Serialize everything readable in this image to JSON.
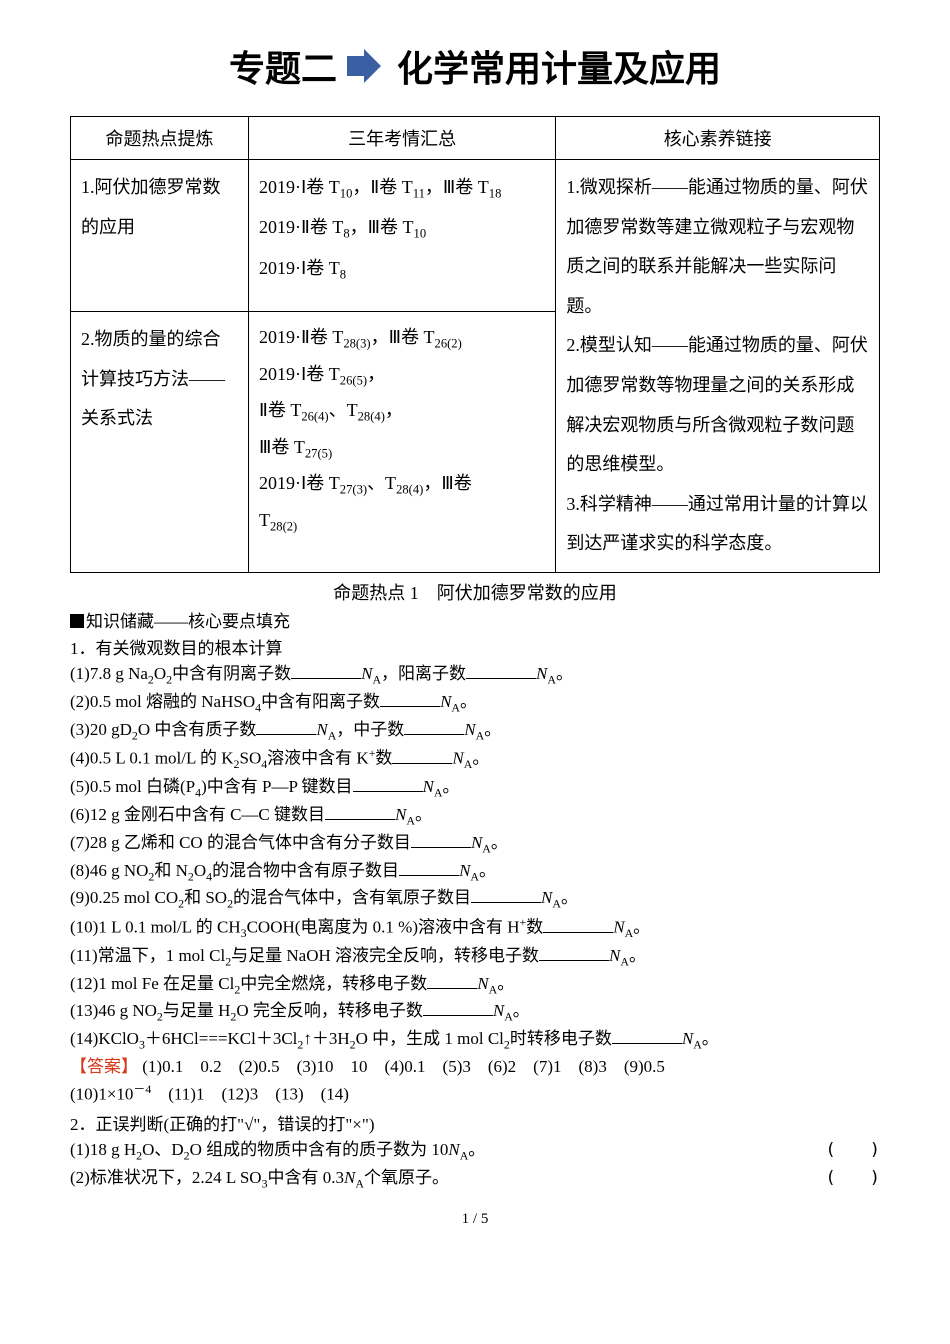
{
  "title": {
    "left": "专题二",
    "right": "化学常用计量及应用"
  },
  "arrow": {
    "fill": "#3a5fa3",
    "bg": "#ffffff"
  },
  "table": {
    "headers": [
      "命题热点提炼",
      "三年考情汇总",
      "核心素养链接"
    ],
    "rows": [
      {
        "c0": "1.阿伏加德罗常数的应用",
        "c1_lines": [
          "2019·Ⅰ卷 T<sub>10</sub>，Ⅱ卷 T<sub>11</sub>，Ⅲ卷 T<sub>18</sub>",
          "2019·Ⅱ卷 T<sub>8</sub>，Ⅲ卷 T<sub>10</sub>",
          "2019·Ⅰ卷 T<sub>8</sub>"
        ]
      },
      {
        "c0": "2.物质的量的综合计算技巧方法——关系式法",
        "c1_lines": [
          "2019·Ⅱ卷 T<sub>28(3)</sub>，Ⅲ卷 T<sub>26(2)</sub>",
          "2019·Ⅰ卷 T<sub>26(5)</sub>，",
          "Ⅱ卷 T<sub>26(4)</sub>、T<sub>28(4)</sub>，",
          "Ⅲ卷 T<sub>27(5)</sub>",
          "2019·Ⅰ卷 T<sub>27(3)</sub>、T<sub>28(4)</sub>，Ⅲ卷",
          "T<sub>28(2)</sub>"
        ]
      }
    ],
    "right_lines": [
      "1.微观探析——能通过物质的量、阿伏加德罗常数等建立微观粒子与宏观物质之间的联系并能解决一些实际问题。",
      "2.模型认知——能通过物质的量、阿伏加德罗常数等物理量之间的关系形成解决宏观物质与所含微观粒子数问题的思维模型。",
      "3.科学精神——通过常用计量的计算以到达严谨求实的科学态度。"
    ]
  },
  "section1": {
    "heading": "命题热点 1　阿伏加德罗常数的应用",
    "sub1": "知识储藏——核心要点填充",
    "sub2": "1．有关微观数目的根本计算"
  },
  "questions": [
    {
      "pre": "(1)7.8 g Na<sub>2</sub>O<sub>2</sub>中含有阴离子数",
      "mid": "<span class=\"italic\">N</span><sub>A</sub>，阳离子数",
      "post": "<span class=\"italic\">N</span><sub>A</sub>。",
      "b1": "w70",
      "b2": "w70"
    },
    {
      "pre": "(2)0.5 mol 熔融的 NaHSO<sub>4</sub>中含有阳离子数",
      "post": "<span class=\"italic\">N</span><sub>A</sub>。",
      "b1": "w60"
    },
    {
      "pre": "(3)20 gD<sub>2</sub>O 中含有质子数",
      "mid": "<span class=\"italic\">N</span><sub>A</sub>，中子数",
      "post": "<span class=\"italic\">N</span><sub>A</sub>。",
      "b1": "w60",
      "b2": "w60"
    },
    {
      "pre": "(4)0.5 L 0.1 mol/L 的 K<sub>2</sub>SO<sub>4</sub>溶液中含有 K<sup>+</sup>数",
      "post": "<span class=\"italic\">N</span><sub>A</sub>。",
      "b1": "w60"
    },
    {
      "pre": "(5)0.5 mol 白磷(P<sub>4</sub>)中含有 P—P 键数目",
      "post": "<span class=\"italic\">N</span><sub>A</sub>。",
      "b1": "w70"
    },
    {
      "pre": "(6)12 g 金刚石中含有 C—C 键数目",
      "post": "<span class=\"italic\">N</span><sub>A</sub>。",
      "b1": "w70"
    },
    {
      "pre": "(7)28 g 乙烯和 CO 的混合气体中含有分子数目",
      "post": "<span class=\"italic\">N</span><sub>A</sub>。",
      "b1": "w60"
    },
    {
      "pre": "(8)46 g NO<sub>2</sub>和 N<sub>2</sub>O<sub>4</sub>的混合物中含有原子数目",
      "post": "<span class=\"italic\">N</span><sub>A</sub>。",
      "b1": "w60"
    },
    {
      "pre": "(9)0.25 mol CO<sub>2</sub>和 SO<sub>2</sub>的混合气体中，含有氧原子数目",
      "post": "<span class=\"italic\">N</span><sub>A</sub>。",
      "b1": "w70"
    },
    {
      "pre": "(10)1 L 0.1 mol/L 的 CH<sub>3</sub>COOH(电离度为 0.1 %)溶液中含有 H<sup>+</sup>数",
      "post": "<span class=\"italic\">N</span><sub>A</sub>。",
      "b1": "w70"
    },
    {
      "pre": "(11)常温下，1 mol Cl<sub>2</sub>与足量 NaOH 溶液完全反响，转移电子数",
      "post": "<span class=\"italic\">N</span><sub>A</sub>。",
      "b1": "w70"
    },
    {
      "pre": "(12)1 mol Fe 在足量 Cl<sub>2</sub>中完全燃烧，转移电子数",
      "post": "<span class=\"italic\">N</span><sub>A</sub>。",
      "b1": "w50"
    },
    {
      "pre": "(13)46 g NO<sub>2</sub>与足量 H<sub>2</sub>O 完全反响，转移电子数",
      "post": "<span class=\"italic\">N</span><sub>A</sub>。",
      "b1": "w70"
    },
    {
      "pre": "(14)KClO<sub>3</sub>＋6HCl===KCl＋3Cl<sub>2</sub>↑＋3H<sub>2</sub>O 中，生成 1 mol Cl<sub>2</sub>时转移电子数",
      "post": "<span class=\"italic\">N</span><sub>A</sub>。",
      "b1": "w70"
    }
  ],
  "answer": {
    "label": "【答案】",
    "line1": "(1)0.1　0.2　(2)0.5　(3)10　10　(4)0.1　(5)3　(6)2　(7)1　(8)3　(9)0.5",
    "line2": "(10)1×10<sup>－4</sup>　(11)1　(12)3　(13)　(14)"
  },
  "judge": {
    "heading": "2．正误判断(正确的打\"√\"，错误的打\"×\")",
    "items": [
      "(1)18 g H<sub>2</sub>O、D<sub>2</sub>O 组成的物质中含有的质子数为 10<span class=\"italic\">N</span><sub>A</sub>。",
      "(2)标准状况下，2.24 L SO<sub>3</sub>中含有 0.3<span class=\"italic\">N</span><sub>A</sub>个氧原子。"
    ]
  },
  "footer": "1 / 5",
  "colors": {
    "text": "#000000",
    "answer_label": "#d23a1a",
    "border": "#000000",
    "background": "#ffffff"
  },
  "fonts": {
    "title_size_pt": 27,
    "body_size_pt": 13,
    "table_size_pt": 13.5
  }
}
